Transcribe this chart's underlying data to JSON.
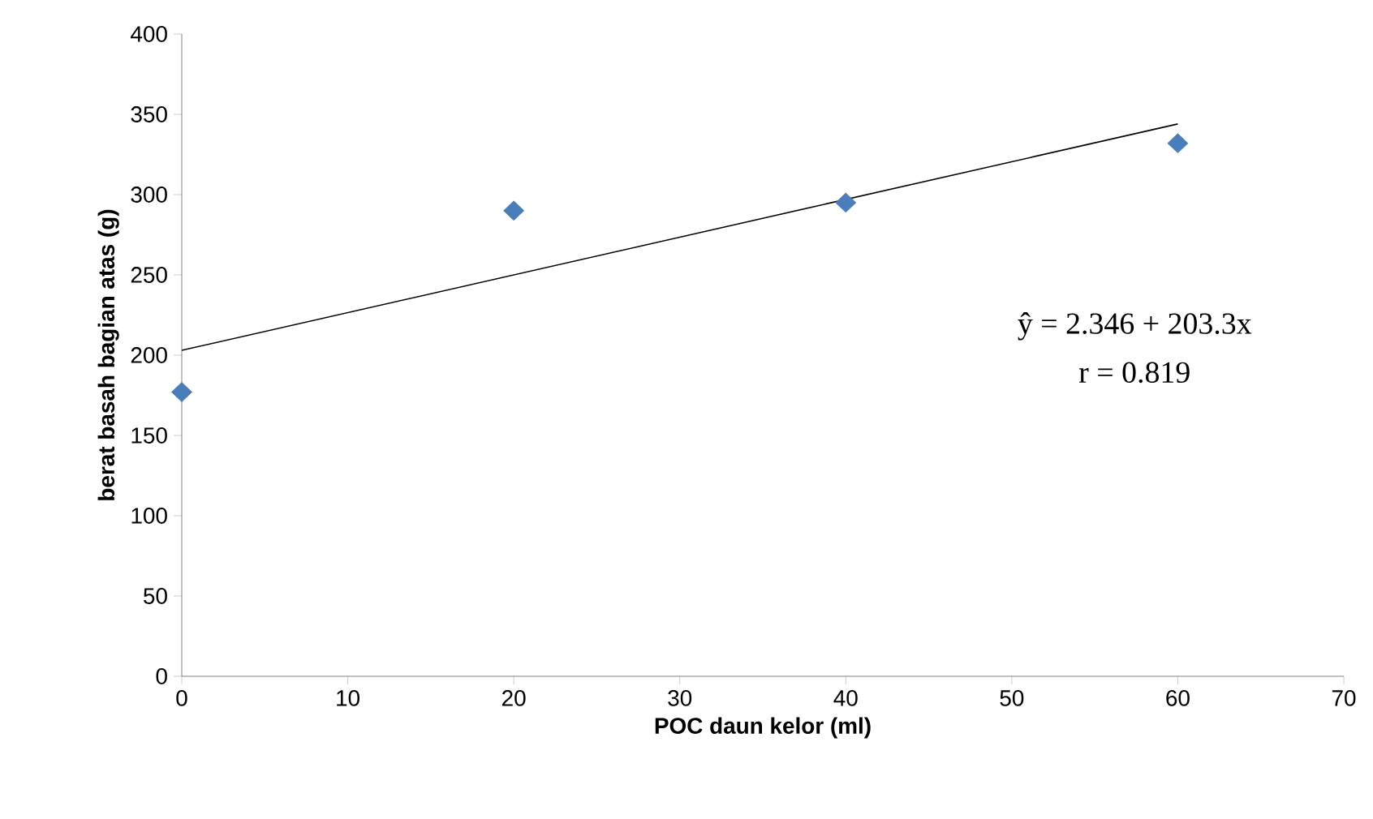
{
  "chart_data": {
    "type": "scatter",
    "xlabel": "POC daun kelor (ml)",
    "ylabel": "berat basah bagian atas (g)",
    "x": [
      0,
      20,
      40,
      60
    ],
    "series": [
      {
        "type": "scatter",
        "color": "#4a7ebb",
        "marker": "diamond",
        "values": [
          177,
          290,
          295,
          332
        ]
      },
      {
        "type": "line",
        "color": "#000000",
        "marker": "none",
        "line_style": "solid",
        "x": [
          0,
          60
        ],
        "values": [
          203,
          344
        ]
      }
    ],
    "xlim": [
      0,
      70
    ],
    "xticks": [
      0,
      10,
      20,
      30,
      40,
      50,
      60,
      70
    ],
    "ylim": [
      0,
      400
    ],
    "yticks": [
      0,
      50,
      100,
      150,
      200,
      250,
      300,
      350,
      400
    ],
    "grid": false,
    "annotations": [
      "ŷ = 2.346 + 203.3x",
      "r = 0.819"
    ]
  }
}
